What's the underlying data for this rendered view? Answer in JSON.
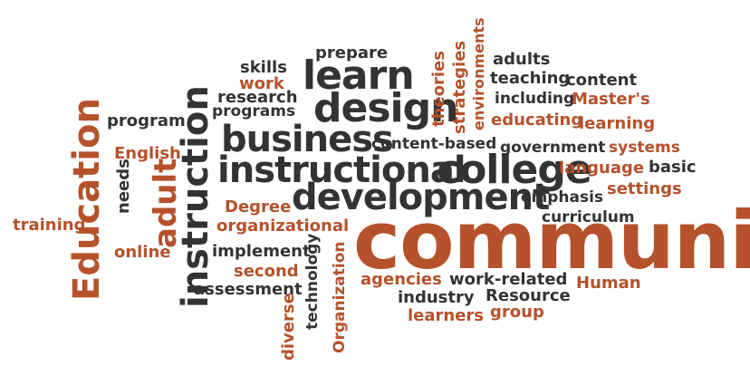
{
  "colors": {
    "dark": "#333333",
    "accent": "#b5522b",
    "background": "#ffffff"
  },
  "words": {
    "community": "community",
    "instructional": "instructional",
    "college": "college",
    "development": "development",
    "business": "business",
    "design": "design",
    "learn": "learn",
    "instruction": "instruction",
    "education": "Education",
    "adult": "adult",
    "prepare": "prepare",
    "skills": "skills",
    "work": "work",
    "research": "research",
    "programs": "programs",
    "program": "program",
    "english": "English",
    "needs": "needs",
    "training": "training",
    "online": "online",
    "degree": "Degree",
    "organizational": "organizational",
    "implement": "implement",
    "second": "second",
    "assessment": "assessment",
    "technology": "technology",
    "diverse": "diverse",
    "organization": "Organization",
    "agencies": "agencies",
    "work_related": "work-related",
    "industry": "industry",
    "resource": "Resource",
    "human": "Human",
    "learners": "learners",
    "group": "group",
    "content_based": "content-based",
    "government": "government",
    "systems": "systems",
    "language": "language",
    "basic": "basic",
    "settings": "settings",
    "emphasis": "emphasis",
    "curriculum": "curriculum",
    "theories": "theories",
    "strategies": "strategies",
    "environments": "environments",
    "adults": "adults",
    "teaching": "teaching",
    "content": "content",
    "including": "including",
    "masters": "Master's",
    "educating": "educating",
    "learning": "learning"
  }
}
